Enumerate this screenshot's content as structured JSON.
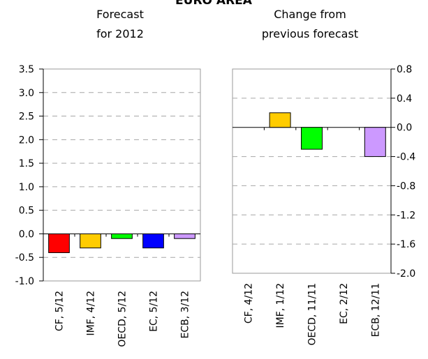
{
  "chart_data": [
    {
      "type": "bar",
      "title": "EURO AREA",
      "subtitle": [
        "Forecast",
        "for 2012"
      ],
      "categories": [
        "CF, 5/12",
        "IMF, 4/12",
        "OECD, 5/12",
        "EC, 5/12",
        "ECB, 3/12"
      ],
      "values": [
        -0.4,
        -0.3,
        -0.1,
        -0.3,
        -0.1
      ],
      "colors": [
        "#ff0000",
        "#ffcc00",
        "#00ff00",
        "#0000ff",
        "#cc99ff"
      ],
      "ylim": [
        -1.0,
        3.5
      ],
      "yticks": [
        "3.5",
        "3.0",
        "2.5",
        "2.0",
        "1.5",
        "1.0",
        "0.5",
        "0.0",
        "-0.5",
        "-1.0"
      ],
      "ytick_values": [
        3.5,
        3.0,
        2.5,
        2.0,
        1.5,
        1.0,
        0.5,
        0.0,
        -0.5,
        -1.0
      ],
      "grid": true,
      "y_axis_side": "left"
    },
    {
      "type": "bar",
      "subtitle": [
        "Change from",
        "previous forecast"
      ],
      "categories": [
        "CF, 4/12",
        "IMF, 1/12",
        "OECD, 11/11",
        "EC, 2/12",
        "ECB, 12/11"
      ],
      "values": [
        0.0,
        0.2,
        -0.3,
        0.0,
        -0.4
      ],
      "colors": [
        "#ff0000",
        "#ffcc00",
        "#00ff00",
        "#0000ff",
        "#cc99ff"
      ],
      "ylim": [
        -2.0,
        0.8
      ],
      "yticks": [
        "0.8",
        "0.4",
        "0.0",
        "-0.4",
        "-0.8",
        "-1.2",
        "-1.6",
        "-2.0"
      ],
      "ytick_values": [
        0.8,
        0.4,
        0.0,
        -0.4,
        -0.8,
        -1.2,
        -1.6,
        -2.0
      ],
      "grid": true,
      "y_axis_side": "right"
    }
  ]
}
